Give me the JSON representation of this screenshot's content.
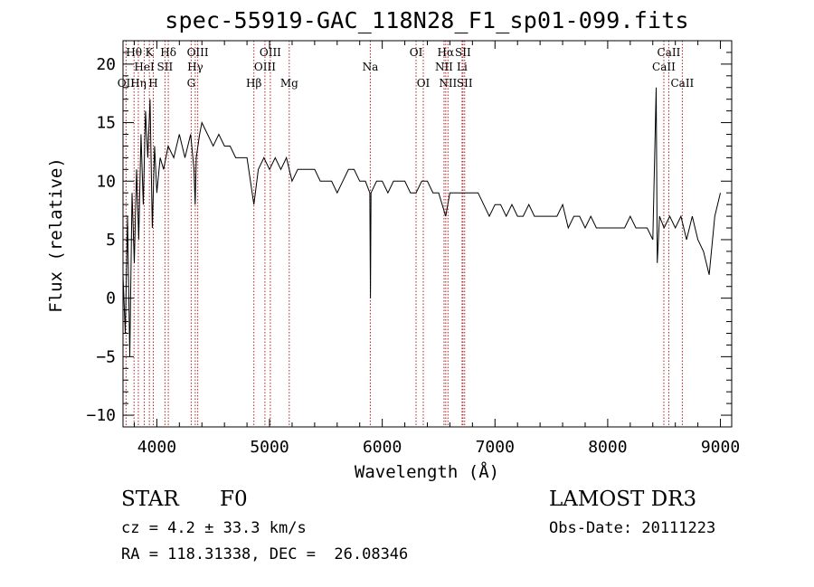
{
  "chart_data": {
    "type": "line",
    "title": "spec-55919-GAC_118N28_F1_sp01-099.fits",
    "xlabel": "Wavelength (Å)",
    "ylabel": "Flux (relative)",
    "xlim": [
      3700,
      9100
    ],
    "ylim": [
      -11,
      22
    ],
    "x_ticks": [
      4000,
      5000,
      6000,
      7000,
      8000,
      9000
    ],
    "y_ticks": [
      -10,
      -5,
      0,
      5,
      10,
      15,
      20
    ],
    "grid": false,
    "line_color": "#000000",
    "marker_color": "#b22222",
    "series": [
      {
        "name": "flux",
        "x": [
          3700,
          3720,
          3740,
          3760,
          3780,
          3800,
          3820,
          3840,
          3860,
          3880,
          3900,
          3920,
          3940,
          3960,
          3980,
          4000,
          4030,
          4060,
          4100,
          4150,
          4200,
          4250,
          4300,
          4330,
          4340,
          4350,
          4380,
          4400,
          4450,
          4500,
          4550,
          4600,
          4650,
          4700,
          4750,
          4800,
          4861,
          4900,
          4950,
          5000,
          5050,
          5100,
          5150,
          5200,
          5250,
          5300,
          5350,
          5400,
          5450,
          5500,
          5550,
          5600,
          5650,
          5700,
          5750,
          5800,
          5850,
          5890,
          5895,
          5900,
          5950,
          6000,
          6050,
          6100,
          6150,
          6200,
          6250,
          6300,
          6350,
          6400,
          6450,
          6500,
          6563,
          6600,
          6650,
          6700,
          6750,
          6800,
          6850,
          6900,
          6950,
          7000,
          7050,
          7100,
          7150,
          7200,
          7250,
          7300,
          7350,
          7400,
          7450,
          7500,
          7550,
          7600,
          7650,
          7700,
          7750,
          7800,
          7850,
          7900,
          7950,
          8000,
          8050,
          8100,
          8150,
          8200,
          8250,
          8300,
          8350,
          8400,
          8430,
          8440,
          8460,
          8500,
          8550,
          8600,
          8650,
          8700,
          8750,
          8800,
          8850,
          8900,
          8950,
          9000
        ],
        "y": [
          2,
          -3,
          7,
          -5,
          9,
          3,
          11,
          5,
          14,
          8,
          16,
          12,
          17,
          6,
          13,
          9,
          12,
          11,
          13,
          12,
          14,
          12,
          14,
          11,
          8,
          12,
          14,
          15,
          14,
          13,
          14,
          13,
          13,
          12,
          12,
          12,
          8,
          11,
          12,
          11,
          12,
          11,
          12,
          10,
          11,
          11,
          11,
          11,
          10,
          10,
          10,
          9,
          10,
          11,
          11,
          10,
          10,
          9,
          0,
          9,
          10,
          10,
          9,
          10,
          10,
          10,
          9,
          9,
          10,
          10,
          9,
          9,
          7,
          9,
          9,
          9,
          9,
          9,
          9,
          8,
          7,
          8,
          8,
          7,
          8,
          7,
          7,
          8,
          7,
          7,
          7,
          7,
          7,
          8,
          6,
          7,
          7,
          6,
          7,
          6,
          6,
          6,
          6,
          6,
          6,
          7,
          6,
          6,
          6,
          5,
          18,
          3,
          7,
          6,
          7,
          6,
          7,
          5,
          7,
          5,
          4,
          2,
          7,
          9
        ]
      }
    ],
    "lines": [
      {
        "name": "OII",
        "wave": 3727,
        "pos": "bottom"
      },
      {
        "name": "Hθ",
        "wave": 3798,
        "pos": "top"
      },
      {
        "name": "Hη",
        "wave": 3836,
        "pos": "bottom"
      },
      {
        "name": "HeI",
        "wave": 3889,
        "pos": "mid"
      },
      {
        "name": "K",
        "wave": 3934,
        "pos": "top"
      },
      {
        "name": "H",
        "wave": 3969,
        "pos": "bottom"
      },
      {
        "name": "SII",
        "wave": 4072,
        "pos": "mid"
      },
      {
        "name": "Hδ",
        "wave": 4102,
        "pos": "top"
      },
      {
        "name": "G",
        "wave": 4305,
        "pos": "bottom"
      },
      {
        "name": "Hγ",
        "wave": 4341,
        "pos": "mid"
      },
      {
        "name": "OIII",
        "wave": 4363,
        "pos": "top"
      },
      {
        "name": "Hβ",
        "wave": 4861,
        "pos": "bottom"
      },
      {
        "name": "OIII",
        "wave": 4959,
        "pos": "mid"
      },
      {
        "name": "OIII",
        "wave": 5007,
        "pos": "top"
      },
      {
        "name": "Mg",
        "wave": 5175,
        "pos": "bottom"
      },
      {
        "name": "Na",
        "wave": 5894,
        "pos": "mid"
      },
      {
        "name": "OI",
        "wave": 6300,
        "pos": "top"
      },
      {
        "name": "OI",
        "wave": 6364,
        "pos": "bottom"
      },
      {
        "name": "NII",
        "wave": 6548,
        "pos": "mid"
      },
      {
        "name": "Hα",
        "wave": 6563,
        "pos": "top"
      },
      {
        "name": "NII",
        "wave": 6583,
        "pos": "bottom"
      },
      {
        "name": "Li",
        "wave": 6708,
        "pos": "mid"
      },
      {
        "name": "SII",
        "wave": 6716,
        "pos": "top"
      },
      {
        "name": "SII",
        "wave": 6731,
        "pos": "bottom"
      },
      {
        "name": "CaII",
        "wave": 8498,
        "pos": "mid"
      },
      {
        "name": "CaII",
        "wave": 8542,
        "pos": "top"
      },
      {
        "name": "CaII",
        "wave": 8662,
        "pos": "bottom"
      }
    ]
  },
  "info": {
    "class_label": "STAR",
    "subclass": "F0",
    "survey": "LAMOST DR3",
    "redshift": "cz = 4.2 ± 33.3 km/s",
    "obs_date": "Obs-Date: 20111223",
    "coords": "RA = 118.31338, DEC =  26.08346"
  }
}
